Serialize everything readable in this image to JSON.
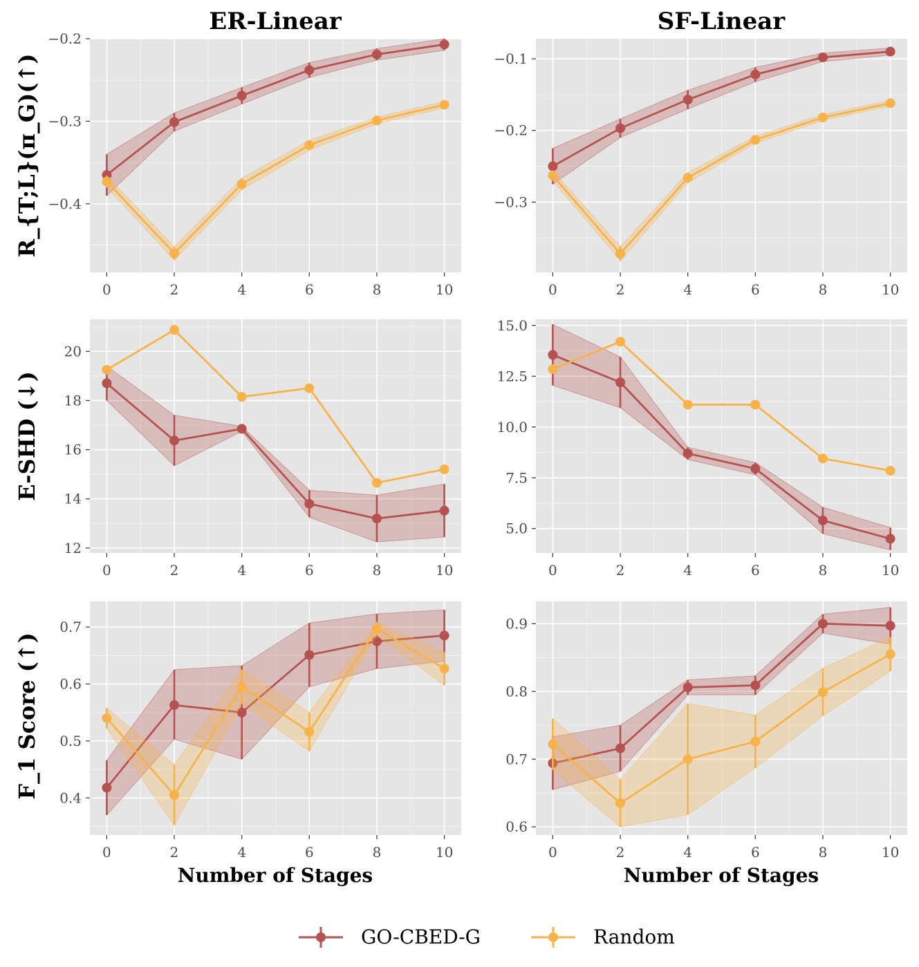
{
  "colors": {
    "go": "#b5524f",
    "random": "#f7b24a",
    "panel_bg": "#e5e5e5",
    "grid": "#ffffff"
  },
  "column_titles": [
    "ER-Linear",
    "SF-Linear"
  ],
  "row_labels": [
    "R_{T;L}(π_G)(↑)",
    "E-SHD (↓)",
    "F_1 Score (↑)"
  ],
  "legend": {
    "items": [
      {
        "label": "GO-CBED-G",
        "series": "go"
      },
      {
        "label": "Random",
        "series": "random"
      }
    ]
  },
  "chart_data": [
    {
      "type": "line",
      "row": 0,
      "col": 0,
      "title": "ER-Linear",
      "xlabel": "",
      "ylabel": "R_{T;L}(π_G)(↑)",
      "xlim": [
        -0.5,
        10.5
      ],
      "ylim": [
        -0.483,
        -0.2
      ],
      "xticks": [
        0,
        2,
        4,
        6,
        8,
        10
      ],
      "yticks": [
        -0.4,
        -0.3,
        -0.2
      ],
      "ytick_labels": [
        "−0.4",
        "−0.3",
        "−0.2"
      ],
      "x": [
        0,
        2,
        4,
        6,
        8,
        10
      ],
      "series": [
        {
          "name": "GO-CBED-G",
          "key": "go",
          "values": [
            -0.365,
            -0.301,
            -0.269,
            -0.238,
            -0.219,
            -0.207
          ],
          "lower": [
            -0.39,
            -0.312,
            -0.279,
            -0.247,
            -0.226,
            -0.214
          ],
          "upper": [
            -0.34,
            -0.29,
            -0.259,
            -0.229,
            -0.212,
            -0.2
          ]
        },
        {
          "name": "Random",
          "key": "random",
          "values": [
            -0.373,
            -0.46,
            -0.376,
            -0.329,
            -0.299,
            -0.28
          ],
          "lower": [
            -0.38,
            -0.468,
            -0.383,
            -0.335,
            -0.303,
            -0.284
          ],
          "upper": [
            -0.366,
            -0.452,
            -0.369,
            -0.323,
            -0.295,
            -0.276
          ]
        }
      ]
    },
    {
      "type": "line",
      "row": 0,
      "col": 1,
      "title": "SF-Linear",
      "xlabel": "",
      "ylabel": "",
      "xlim": [
        -0.5,
        10.5
      ],
      "ylim": [
        -0.398,
        -0.072
      ],
      "xticks": [
        0,
        2,
        4,
        6,
        8,
        10
      ],
      "yticks": [
        -0.3,
        -0.2,
        -0.1
      ],
      "ytick_labels": [
        "−0.3",
        "−0.2",
        "−0.1"
      ],
      "x": [
        0,
        2,
        4,
        6,
        8,
        10
      ],
      "series": [
        {
          "name": "GO-CBED-G",
          "key": "go",
          "values": [
            -0.25,
            -0.197,
            -0.157,
            -0.122,
            -0.098,
            -0.09
          ],
          "lower": [
            -0.275,
            -0.21,
            -0.17,
            -0.132,
            -0.104,
            -0.095
          ],
          "upper": [
            -0.225,
            -0.184,
            -0.144,
            -0.112,
            -0.092,
            -0.085
          ]
        },
        {
          "name": "Random",
          "key": "random",
          "values": [
            -0.263,
            -0.372,
            -0.266,
            -0.213,
            -0.182,
            -0.162
          ],
          "lower": [
            -0.27,
            -0.382,
            -0.273,
            -0.218,
            -0.186,
            -0.166
          ],
          "upper": [
            -0.256,
            -0.362,
            -0.259,
            -0.208,
            -0.178,
            -0.158
          ]
        }
      ]
    },
    {
      "type": "line",
      "row": 1,
      "col": 0,
      "title": "",
      "xlabel": "",
      "ylabel": "E-SHD (↓)",
      "xlim": [
        -0.5,
        10.5
      ],
      "ylim": [
        11.8,
        21.3
      ],
      "xticks": [
        0,
        2,
        4,
        6,
        8,
        10
      ],
      "yticks": [
        12,
        14,
        16,
        18,
        20
      ],
      "ytick_labels": [
        "12",
        "14",
        "16",
        "18",
        "20"
      ],
      "x": [
        0,
        2,
        4,
        6,
        8,
        10
      ],
      "series": [
        {
          "name": "GO-CBED-G",
          "key": "go",
          "values": [
            18.7,
            16.37,
            16.85,
            13.8,
            13.2,
            13.52
          ],
          "lower": [
            18.0,
            15.35,
            16.75,
            13.25,
            12.25,
            12.45
          ],
          "upper": [
            19.4,
            17.4,
            16.95,
            14.35,
            14.15,
            14.6
          ]
        },
        {
          "name": "Random",
          "key": "random",
          "values": [
            19.25,
            20.87,
            18.15,
            18.5,
            14.65,
            15.2
          ]
        }
      ]
    },
    {
      "type": "line",
      "row": 1,
      "col": 1,
      "title": "",
      "xlabel": "",
      "ylabel": "",
      "xlim": [
        -0.5,
        10.5
      ],
      "ylim": [
        3.8,
        15.3
      ],
      "xticks": [
        0,
        2,
        4,
        6,
        8,
        10
      ],
      "yticks": [
        5.0,
        7.5,
        10.0,
        12.5,
        15.0
      ],
      "ytick_labels": [
        "5.0",
        "7.5",
        "10.0",
        "12.5",
        "15.0"
      ],
      "x": [
        0,
        2,
        4,
        6,
        8,
        10
      ],
      "series": [
        {
          "name": "GO-CBED-G",
          "key": "go",
          "values": [
            13.55,
            12.2,
            8.7,
            7.95,
            5.4,
            4.5
          ],
          "lower": [
            12.05,
            10.95,
            8.4,
            7.65,
            4.75,
            3.95
          ],
          "upper": [
            15.05,
            13.45,
            9.0,
            8.25,
            6.05,
            5.05
          ]
        },
        {
          "name": "Random",
          "key": "random",
          "values": [
            12.85,
            14.2,
            11.1,
            11.1,
            8.45,
            7.85
          ]
        }
      ]
    },
    {
      "type": "line",
      "row": 2,
      "col": 0,
      "title": "",
      "xlabel": "Number of Stages",
      "ylabel": "F_1 Score (↑)",
      "xlim": [
        -0.5,
        10.5
      ],
      "ylim": [
        0.335,
        0.745
      ],
      "xticks": [
        0,
        2,
        4,
        6,
        8,
        10
      ],
      "yticks": [
        0.4,
        0.5,
        0.6,
        0.7
      ],
      "ytick_labels": [
        "0.4",
        "0.5",
        "0.6",
        "0.7"
      ],
      "x": [
        0,
        2,
        4,
        6,
        8,
        10
      ],
      "series": [
        {
          "name": "GO-CBED-G",
          "key": "go",
          "values": [
            0.418,
            0.563,
            0.55,
            0.651,
            0.675,
            0.685
          ],
          "lower": [
            0.37,
            0.503,
            0.468,
            0.595,
            0.627,
            0.64
          ],
          "upper": [
            0.466,
            0.625,
            0.632,
            0.707,
            0.723,
            0.73
          ]
        },
        {
          "name": "Random",
          "key": "random",
          "values": [
            0.54,
            0.405,
            0.595,
            0.516,
            0.697,
            0.627
          ],
          "lower": [
            0.522,
            0.352,
            0.565,
            0.482,
            0.685,
            0.598
          ],
          "upper": [
            0.558,
            0.458,
            0.625,
            0.55,
            0.709,
            0.656
          ]
        }
      ]
    },
    {
      "type": "line",
      "row": 2,
      "col": 1,
      "title": "",
      "xlabel": "Number of Stages",
      "ylabel": "",
      "xlim": [
        -0.5,
        10.5
      ],
      "ylim": [
        0.588,
        0.933
      ],
      "xticks": [
        0,
        2,
        4,
        6,
        8,
        10
      ],
      "yticks": [
        0.6,
        0.7,
        0.8,
        0.9
      ],
      "ytick_labels": [
        "0.6",
        "0.7",
        "0.8",
        "0.9"
      ],
      "x": [
        0,
        2,
        4,
        6,
        8,
        10
      ],
      "series": [
        {
          "name": "GO-CBED-G",
          "key": "go",
          "values": [
            0.694,
            0.716,
            0.806,
            0.809,
            0.9,
            0.897
          ],
          "lower": [
            0.655,
            0.682,
            0.795,
            0.795,
            0.886,
            0.87
          ],
          "upper": [
            0.733,
            0.75,
            0.817,
            0.823,
            0.914,
            0.924
          ]
        },
        {
          "name": "Random",
          "key": "random",
          "values": [
            0.722,
            0.635,
            0.7,
            0.726,
            0.799,
            0.855
          ],
          "lower": [
            0.684,
            0.6,
            0.618,
            0.687,
            0.764,
            0.83
          ],
          "upper": [
            0.76,
            0.67,
            0.782,
            0.765,
            0.834,
            0.88
          ]
        }
      ]
    }
  ]
}
